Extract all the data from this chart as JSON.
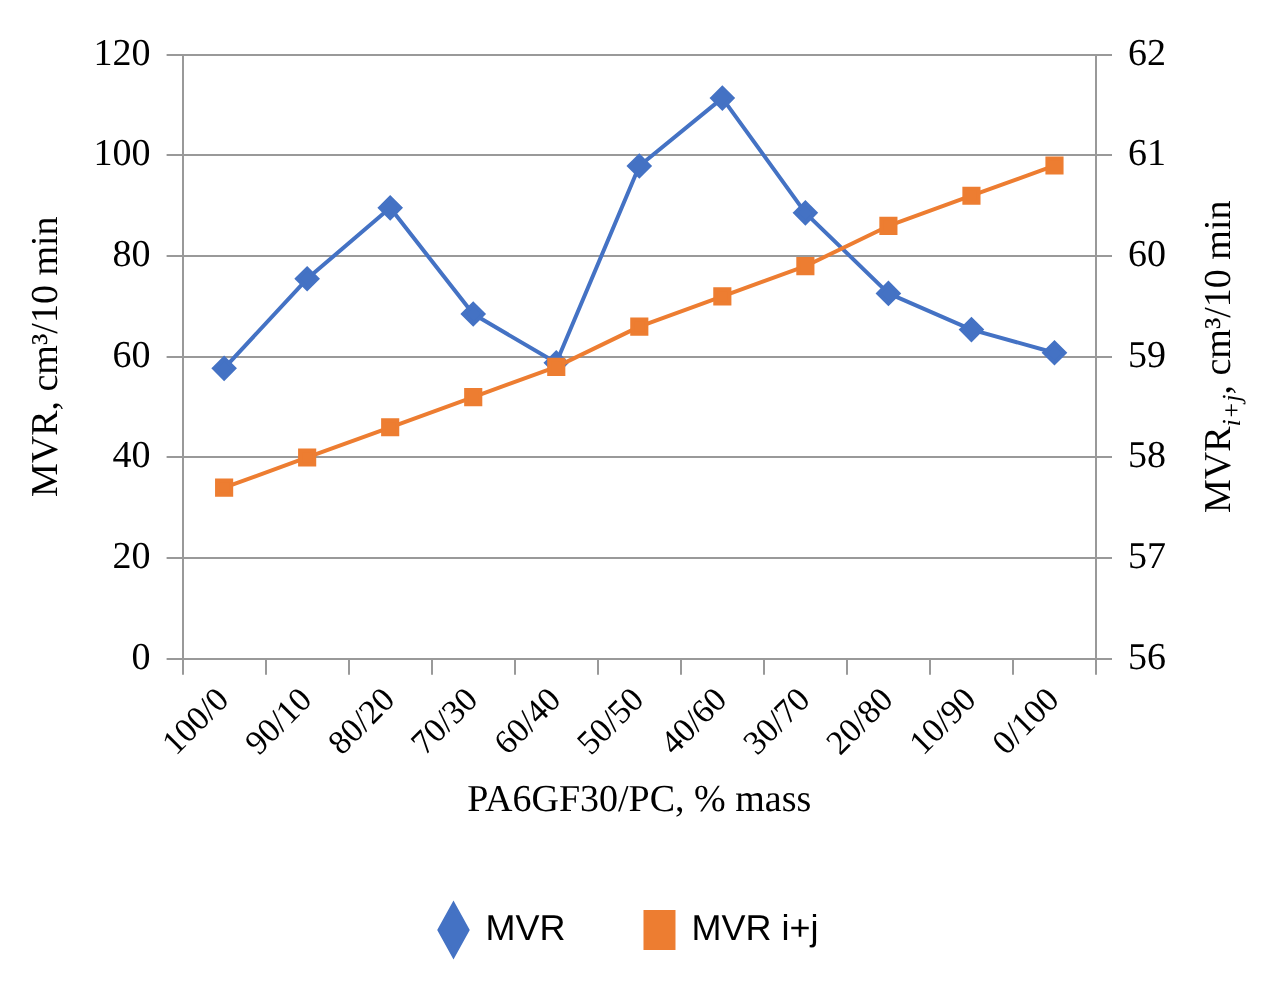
{
  "chart_data": {
    "type": "line",
    "xlabel": "PA6GF30/PC, % mass",
    "ylabel": "MVR, cm³/10 min",
    "y2label": "MVR$_{i+j}$, cm³/10 min",
    "categories": [
      "100/0",
      "90/10",
      "80/20",
      "70/30",
      "60/40",
      "50/50",
      "40/60",
      "30/70",
      "20/80",
      "10/90",
      "0/100"
    ],
    "series": [
      {
        "name": "MVR",
        "color": "#4472c4",
        "marker": "diamond",
        "values": [
          57.7,
          75.5,
          89.6,
          68.5,
          58.8,
          97.9,
          111.4,
          88.6,
          72.6,
          65.4,
          60.8
        ]
      },
      {
        "name": "MVR i+j",
        "color": "#ed7d31",
        "marker": "square",
        "axis": "y2",
        "values": [
          57.7,
          58.0,
          58.3,
          58.6,
          58.9,
          59.3,
          59.6,
          59.9,
          60.3,
          60.6,
          60.9
        ]
      }
    ],
    "ylim": [
      0,
      120
    ],
    "yticks": [
      0,
      20,
      40,
      60,
      80,
      100,
      120
    ],
    "y2lim": [
      56,
      62
    ],
    "y2ticks": [
      56,
      57,
      58,
      59,
      60,
      61,
      62
    ],
    "grid": "y",
    "legend": "bottom",
    "line_style": "solid"
  }
}
